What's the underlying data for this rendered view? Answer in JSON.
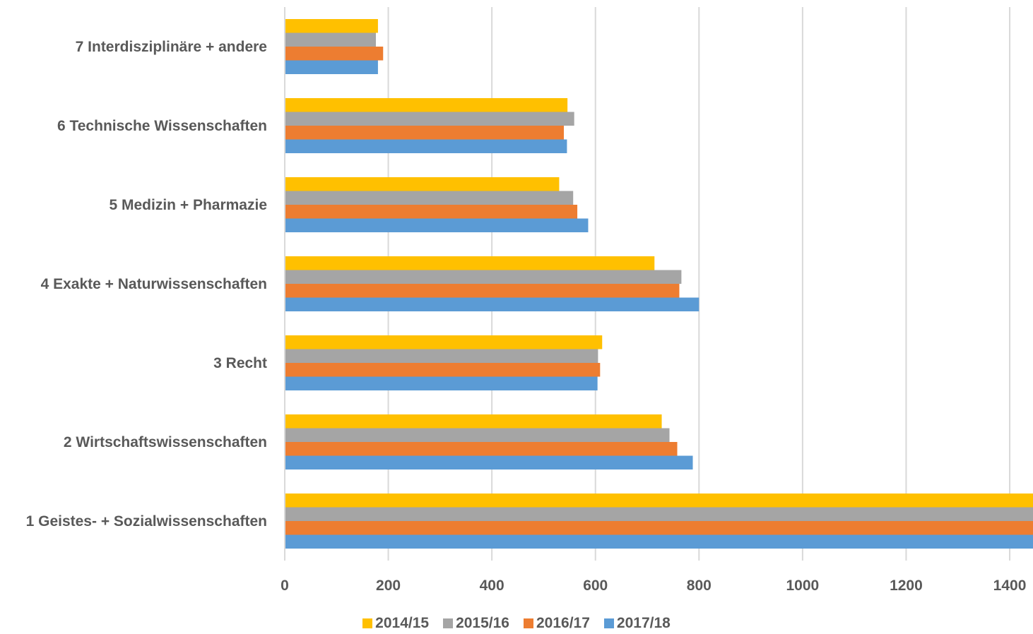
{
  "chart_data": {
    "type": "bar",
    "orientation": "horizontal",
    "categories": [
      "1 Geistes- + Sozialwissenschaften",
      "2 Wirtschaftswissenschaften",
      "3 Recht",
      "4 Exakte + Naturwissenschaften",
      "5 Medizin + Pharmazie",
      "6 Technische Wissenschaften",
      "7 Interdisziplinäre + andere"
    ],
    "series": [
      {
        "name": "2014/15",
        "color": "#ffc000",
        "values": [
          1445,
          728,
          613,
          714,
          530,
          546,
          180
        ]
      },
      {
        "name": "2015/16",
        "color": "#a5a5a5",
        "values": [
          1445,
          743,
          605,
          766,
          557,
          559,
          176
        ]
      },
      {
        "name": "2016/17",
        "color": "#ed7d31",
        "values": [
          1445,
          758,
          609,
          762,
          565,
          539,
          190
        ]
      },
      {
        "name": "2017/18",
        "color": "#5b9bd5",
        "values": [
          1445,
          788,
          604,
          800,
          586,
          545,
          180
        ]
      }
    ],
    "xticks": [
      "0",
      "200",
      "400",
      "600",
      "800",
      "1000",
      "1200",
      "1400"
    ],
    "xlim": [
      0,
      1445
    ],
    "grid": true,
    "legend_position": "bottom",
    "title": "",
    "xlabel": "",
    "ylabel": ""
  }
}
